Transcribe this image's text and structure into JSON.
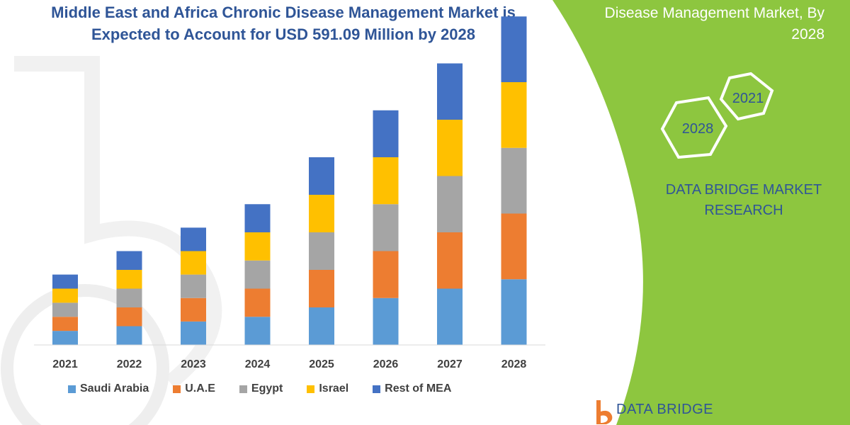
{
  "header": {
    "title_line1": "Middle East and Africa Chronic Disease Management Market is",
    "title_line2": "Expected to Account for USD 591.09 Million by 2028"
  },
  "side_panel": {
    "title_line1": "Disease Management Market, By",
    "title_line2": "2028",
    "hex_top_label": "2021",
    "hex_bottom_label": "2028",
    "brand_line1": "DATA BRIDGE MARKET",
    "brand_line2": "RESEARCH",
    "accent_color": "#8dc63f"
  },
  "logo": {
    "text": "DATA BRIDGE"
  },
  "chart_data": {
    "type": "bar",
    "stacked": true,
    "categories": [
      "2021",
      "2022",
      "2023",
      "2024",
      "2025",
      "2026",
      "2027",
      "2028"
    ],
    "series": [
      {
        "name": "Saudi Arabia",
        "color": "#5b9bd5",
        "values": [
          15,
          20,
          25,
          30,
          40,
          50,
          60,
          70
        ]
      },
      {
        "name": "U.A.E",
        "color": "#ed7d31",
        "values": [
          15,
          20,
          25,
          30,
          40,
          50,
          60,
          70
        ]
      },
      {
        "name": "Egypt",
        "color": "#a5a5a5",
        "values": [
          15,
          20,
          25,
          30,
          40,
          50,
          60,
          70
        ]
      },
      {
        "name": "Israel",
        "color": "#ffc000",
        "values": [
          15,
          20,
          25,
          30,
          40,
          50,
          60,
          70
        ]
      },
      {
        "name": "Rest of MEA",
        "color": "#4472c4",
        "values": [
          15,
          20,
          25,
          30,
          40,
          50,
          60,
          70
        ]
      }
    ],
    "ylim": [
      0,
      360
    ],
    "grid": false,
    "legend_position": "bottom"
  }
}
